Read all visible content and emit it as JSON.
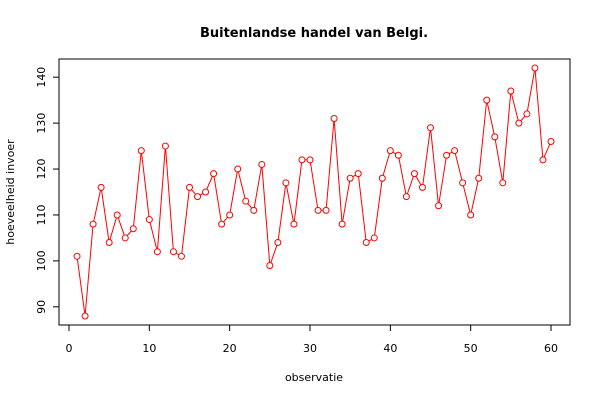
{
  "chart_data": {
    "type": "line",
    "title": "Buitenlandse handel van Belgi.",
    "xlabel": "observatie",
    "ylabel": "hoeveelheid invoer",
    "xlim": [
      0,
      60
    ],
    "ylim": [
      88,
      142
    ],
    "xticks": [
      0,
      10,
      20,
      30,
      40,
      50,
      60
    ],
    "yticks": [
      90,
      100,
      110,
      120,
      130,
      140
    ],
    "grid": false,
    "series_color": "#ff0000",
    "x": [
      1,
      2,
      3,
      4,
      5,
      6,
      7,
      8,
      9,
      10,
      11,
      12,
      13,
      14,
      15,
      16,
      17,
      18,
      19,
      20,
      21,
      22,
      23,
      24,
      25,
      26,
      27,
      28,
      29,
      30,
      31,
      32,
      33,
      34,
      35,
      36,
      37,
      38,
      39,
      40,
      41,
      42,
      43,
      44,
      45,
      46,
      47,
      48,
      49,
      50,
      51,
      52,
      53,
      54,
      55,
      56,
      57,
      58,
      59,
      60
    ],
    "values": [
      101,
      88,
      108,
      116,
      104,
      110,
      105,
      107,
      124,
      109,
      102,
      125,
      102,
      101,
      116,
      114,
      115,
      119,
      108,
      110,
      120,
      113,
      111,
      121,
      99,
      104,
      117,
      108,
      122,
      122,
      111,
      111,
      131,
      108,
      118,
      119,
      104,
      105,
      118,
      124,
      123,
      114,
      119,
      116,
      129,
      112,
      123,
      124,
      117,
      110,
      118,
      135,
      127,
      117,
      137,
      130,
      132,
      142,
      122,
      126
    ]
  }
}
